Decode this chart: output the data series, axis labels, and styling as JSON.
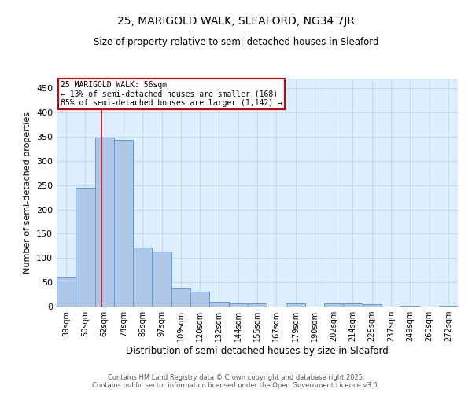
{
  "title1": "25, MARIGOLD WALK, SLEAFORD, NG34 7JR",
  "title2": "Size of property relative to semi-detached houses in Sleaford",
  "xlabel": "Distribution of semi-detached houses by size in Sleaford",
  "ylabel": "Number of semi-detached properties",
  "categories": [
    "39sqm",
    "50sqm",
    "62sqm",
    "74sqm",
    "85sqm",
    "97sqm",
    "109sqm",
    "120sqm",
    "132sqm",
    "144sqm",
    "155sqm",
    "167sqm",
    "179sqm",
    "190sqm",
    "202sqm",
    "214sqm",
    "225sqm",
    "237sqm",
    "249sqm",
    "260sqm",
    "272sqm"
  ],
  "values": [
    60,
    244,
    348,
    343,
    122,
    114,
    38,
    30,
    9,
    6,
    6,
    0,
    7,
    0,
    7,
    6,
    5,
    0,
    1,
    0,
    2
  ],
  "bar_color": "#aec6e8",
  "bar_edgecolor": "#5b9bd5",
  "subject_label": "25 MARIGOLD WALK: 56sqm",
  "annotation_line1": "← 13% of semi-detached houses are smaller (168)",
  "annotation_line2": "85% of semi-detached houses are larger (1,142) →",
  "annotation_box_color": "#cc0000",
  "subject_line_color": "#cc0000",
  "grid_color": "#c8d8e8",
  "background_color": "#ddeeff",
  "ylim": [
    0,
    470
  ],
  "yticks": [
    0,
    50,
    100,
    150,
    200,
    250,
    300,
    350,
    400,
    450
  ],
  "footer1": "Contains HM Land Registry data © Crown copyright and database right 2025.",
  "footer2": "Contains public sector information licensed under the Open Government Licence v3.0."
}
